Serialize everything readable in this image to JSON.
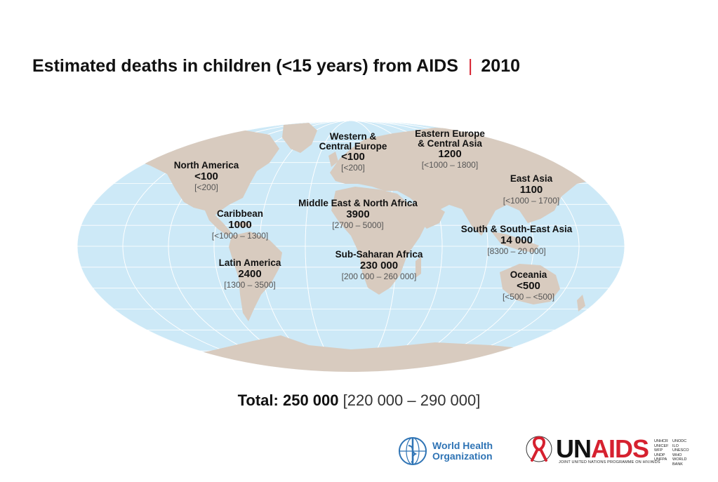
{
  "title": {
    "main": "Estimated deaths in children (<15 years) from AIDS",
    "separator": "|",
    "year": "2010"
  },
  "colors": {
    "ocean": "#cde9f7",
    "land": "#d8cbbf",
    "graticule": "#ffffff",
    "accent_red": "#d6212f",
    "who_blue": "#2f74b5"
  },
  "regions": [
    {
      "id": "north-america",
      "name_lines": [
        "North America"
      ],
      "value": "<100",
      "range": "[<200]"
    },
    {
      "id": "caribbean",
      "name_lines": [
        "Caribbean"
      ],
      "value": "1000",
      "range": "[<1000 – 1300]"
    },
    {
      "id": "latin-america",
      "name_lines": [
        "Latin America"
      ],
      "value": "2400",
      "range": "[1300 – 3500]"
    },
    {
      "id": "western-central-europe",
      "name_lines": [
        "Western &",
        "Central Europe"
      ],
      "value": "<100",
      "range": "[<200]"
    },
    {
      "id": "eastern-europe-central-asia",
      "name_lines": [
        "Eastern Europe",
        "& Central Asia"
      ],
      "value": "1200",
      "range": "[<1000 – 1800]"
    },
    {
      "id": "east-asia",
      "name_lines": [
        "East Asia"
      ],
      "value": "1100",
      "range": "[<1000 – 1700]"
    },
    {
      "id": "middle-east-north-africa",
      "name_lines": [
        "Middle East & North Africa"
      ],
      "value": "3900",
      "range": "[2700 – 5000]"
    },
    {
      "id": "south-southeast-asia",
      "name_lines": [
        "South & South-East Asia"
      ],
      "value": "14 000",
      "range": "[8300 – 20 000]"
    },
    {
      "id": "sub-saharan-africa",
      "name_lines": [
        "Sub-Saharan Africa"
      ],
      "value": "230 000",
      "range": "[200 000 – 260 000]"
    },
    {
      "id": "oceania",
      "name_lines": [
        "Oceania"
      ],
      "value": "<500",
      "range": "[<500 – <500]"
    }
  ],
  "total": {
    "label": "Total:",
    "value": "250 000",
    "range": "[220 000 – 290 000]"
  },
  "logos": {
    "who": {
      "line1": "World Health",
      "line2": "Organization",
      "icon": "who-emblem-icon"
    },
    "unaids": {
      "word_un": "UN",
      "word_aids": "AIDS",
      "icon": "red-ribbon-icon",
      "subtitle": "JOINT UNITED NATIONS PROGRAMME ON HIV/AIDS",
      "cosponsors": [
        "UNHCR",
        "UNODC",
        "UNICEF",
        "ILO",
        "WFP",
        "UNESCO",
        "UNDP",
        "WHO",
        "UNFPA",
        "WORLD BANK"
      ]
    }
  }
}
